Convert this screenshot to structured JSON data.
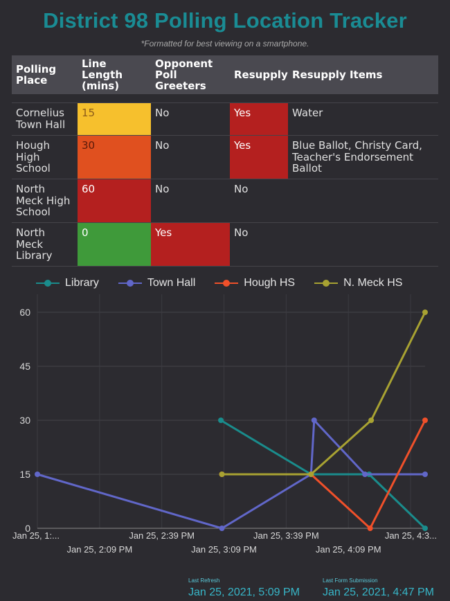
{
  "title": "District 98 Polling Location Tracker",
  "subtitle": "*Formatted for best viewing on a smartphone.",
  "table": {
    "headers": [
      "Polling Place",
      "Line Length (mins)",
      "Opponent Poll Greeters",
      "Resupply",
      "Resupply Items"
    ],
    "rows": [
      {
        "place": "Cornelius Town Hall",
        "line": "15",
        "greeters": "No",
        "resupply": "Yes",
        "items": "Water"
      },
      {
        "place": "Hough High School",
        "line": "30",
        "greeters": "No",
        "resupply": "Yes",
        "items": "Blue Ballot, Christy Card, Teacher's Endorsement Ballot"
      },
      {
        "place": "North Meck High School",
        "line": "60",
        "greeters": "No",
        "resupply": "No",
        "items": ""
      },
      {
        "place": "North Meck Library",
        "line": "0",
        "greeters": "Yes",
        "resupply": "No",
        "items": ""
      }
    ]
  },
  "colors": {
    "yellow": "#f6c02d",
    "orange": "#e0501f",
    "red": "#b4201f",
    "green": "#3f9a3a",
    "title": "#1a8c94",
    "background": "#2c2b30"
  },
  "chart_data": {
    "type": "line",
    "legend_position": "top",
    "grid": true,
    "ylim": [
      0,
      65
    ],
    "yticks": [
      0,
      15,
      30,
      45,
      60
    ],
    "xticks": [
      {
        "t": 0,
        "label": "Jan 25, 1:..."
      },
      {
        "t": 30,
        "label": "Jan 25, 2:09 PM"
      },
      {
        "t": 60,
        "label": "Jan 25, 2:39 PM"
      },
      {
        "t": 90,
        "label": "Jan 25, 3:09 PM"
      },
      {
        "t": 120,
        "label": "Jan 25, 3:39 PM"
      },
      {
        "t": 150,
        "label": "Jan 25, 4:09 PM"
      },
      {
        "t": 180,
        "label": "Jan 25, 4:3..."
      }
    ],
    "series": [
      {
        "name": "Library",
        "color": "#1a8c8c",
        "points": [
          [
            88.5,
            30
          ],
          [
            132,
            15
          ],
          [
            160,
            15
          ],
          [
            187,
            0
          ]
        ]
      },
      {
        "name": "Town Hall",
        "color": "#6167c9",
        "points": [
          [
            0,
            15
          ],
          [
            89,
            0
          ],
          [
            132,
            15
          ],
          [
            133.5,
            30
          ],
          [
            158,
            15
          ],
          [
            187,
            15
          ]
        ]
      },
      {
        "name": "Hough HS",
        "color": "#f0502a",
        "points": [
          [
            89,
            15
          ],
          [
            132,
            15
          ],
          [
            160.5,
            0
          ],
          [
            187,
            30
          ]
        ]
      },
      {
        "name": "N. Meck HS",
        "color": "#a8a232",
        "points": [
          [
            89,
            15
          ],
          [
            132,
            15
          ],
          [
            161,
            30
          ],
          [
            187,
            60
          ]
        ]
      }
    ]
  },
  "footer": {
    "last_refresh_label": "Last Refresh",
    "last_refresh_value": "Jan 25, 2021, 5:09 PM",
    "last_submission_label": "Last Form Submission",
    "last_submission_value": "Jan 25, 2021, 4:47 PM"
  }
}
